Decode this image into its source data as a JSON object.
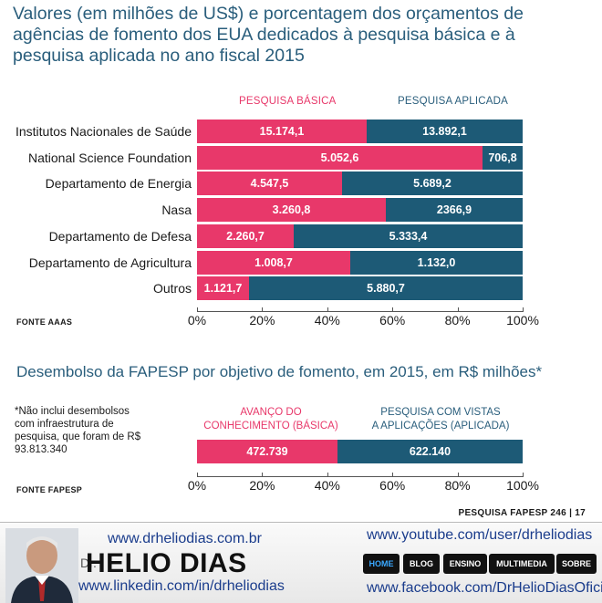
{
  "title": "Valores (em milhões de US$) e porcentagem dos orçamentos de agências de fomento dos EUA dedicados à pesquisa básica e à pesquisa aplicada no ano fiscal 2015",
  "colors": {
    "basic": "#e8386a",
    "applied": "#1d5a76",
    "title": "#2a5e7c"
  },
  "chart_data": [
    {
      "type": "bar",
      "stacked": "percent",
      "orientation": "horizontal",
      "title": "Valores (em milhões de US$) e porcentagem dos orçamentos de agências de fomento dos EUA dedicados à pesquisa básica e à pesquisa aplicada no ano fiscal 2015",
      "categories": [
        "Institutos Nacionales de Saúde",
        "National Science Foundation",
        "Departamento de Energia",
        "Nasa",
        "Departamento de Defesa",
        "Departamento de Agricultura",
        "Outros"
      ],
      "series": [
        {
          "name": "PESQUISA BÁSICA",
          "values": [
            15174.1,
            5052.6,
            4547.5,
            3260.8,
            2260.7,
            1008.7,
            1121.7
          ],
          "labels": [
            "15.174,1",
            "5.052,6",
            "4.547,5",
            "3.260,8",
            "2.260,7",
            "1.008,7",
            "1.121,7"
          ]
        },
        {
          "name": "PESQUISA APLICADA",
          "values": [
            13892.1,
            706.8,
            5689.2,
            2366.9,
            5333.4,
            1132.0,
            5880.7
          ],
          "labels": [
            "13.892,1",
            "706,8",
            "5.689,2",
            "2366,9",
            "5.333,4",
            "1.132,0",
            "5.880,7"
          ]
        }
      ],
      "xticks": [
        "0%",
        "20%",
        "40%",
        "60%",
        "80%",
        "100%"
      ],
      "xlim": [
        0,
        100
      ],
      "source": "FONTE AAAS"
    },
    {
      "type": "bar",
      "stacked": "percent",
      "orientation": "horizontal",
      "title": "Desembolso da FAPESP por objetivo de fomento, em 2015, em R$ milhões*",
      "categories": [
        ""
      ],
      "series": [
        {
          "name": "AVANÇO DO CONHECIMENTO (BÁSICA)",
          "values": [
            472.739
          ],
          "labels": [
            "472.739"
          ]
        },
        {
          "name": "PESQUISA COM VISTAS A APLICAÇÕES (APLICADA)",
          "values": [
            622.14
          ],
          "labels": [
            "622.140"
          ]
        }
      ],
      "xticks": [
        "0%",
        "20%",
        "40%",
        "60%",
        "80%",
        "100%"
      ],
      "xlim": [
        0,
        100
      ],
      "source": "FONTE FAPESP"
    }
  ],
  "chart2": {
    "title": "Desembolso da FAPESP por objetivo de fomento, em 2015, em R$ milhões*",
    "note": "*Não inclui desembolsos com infraestrutura de pesquisa, que foram de R$ 93.813.340",
    "header_basic_1": "AVANÇO DO",
    "header_basic_2": "CONHECIMENTO (BÁSICA)",
    "header_applied_1": "PESQUISA COM VISTAS",
    "header_applied_2": "A APLICAÇÕES (APLICADA)"
  },
  "footer": {
    "magazine": "PESQUISA FAPESP 246  |  17"
  },
  "banner": {
    "dr": "Dr.",
    "name": "HELIO DIAS",
    "site": "www.drheliodias.com.br",
    "linkedin": "www.linkedin.com/in/drheliodias",
    "youtube": "www.youtube.com/user/drheliodias",
    "facebook": "www.facebook.com/DrHelioDiasOficial",
    "nav": [
      "HOME",
      "BLOG",
      "ENSINO",
      "MULTIMEDIA",
      "SOBRE"
    ]
  }
}
